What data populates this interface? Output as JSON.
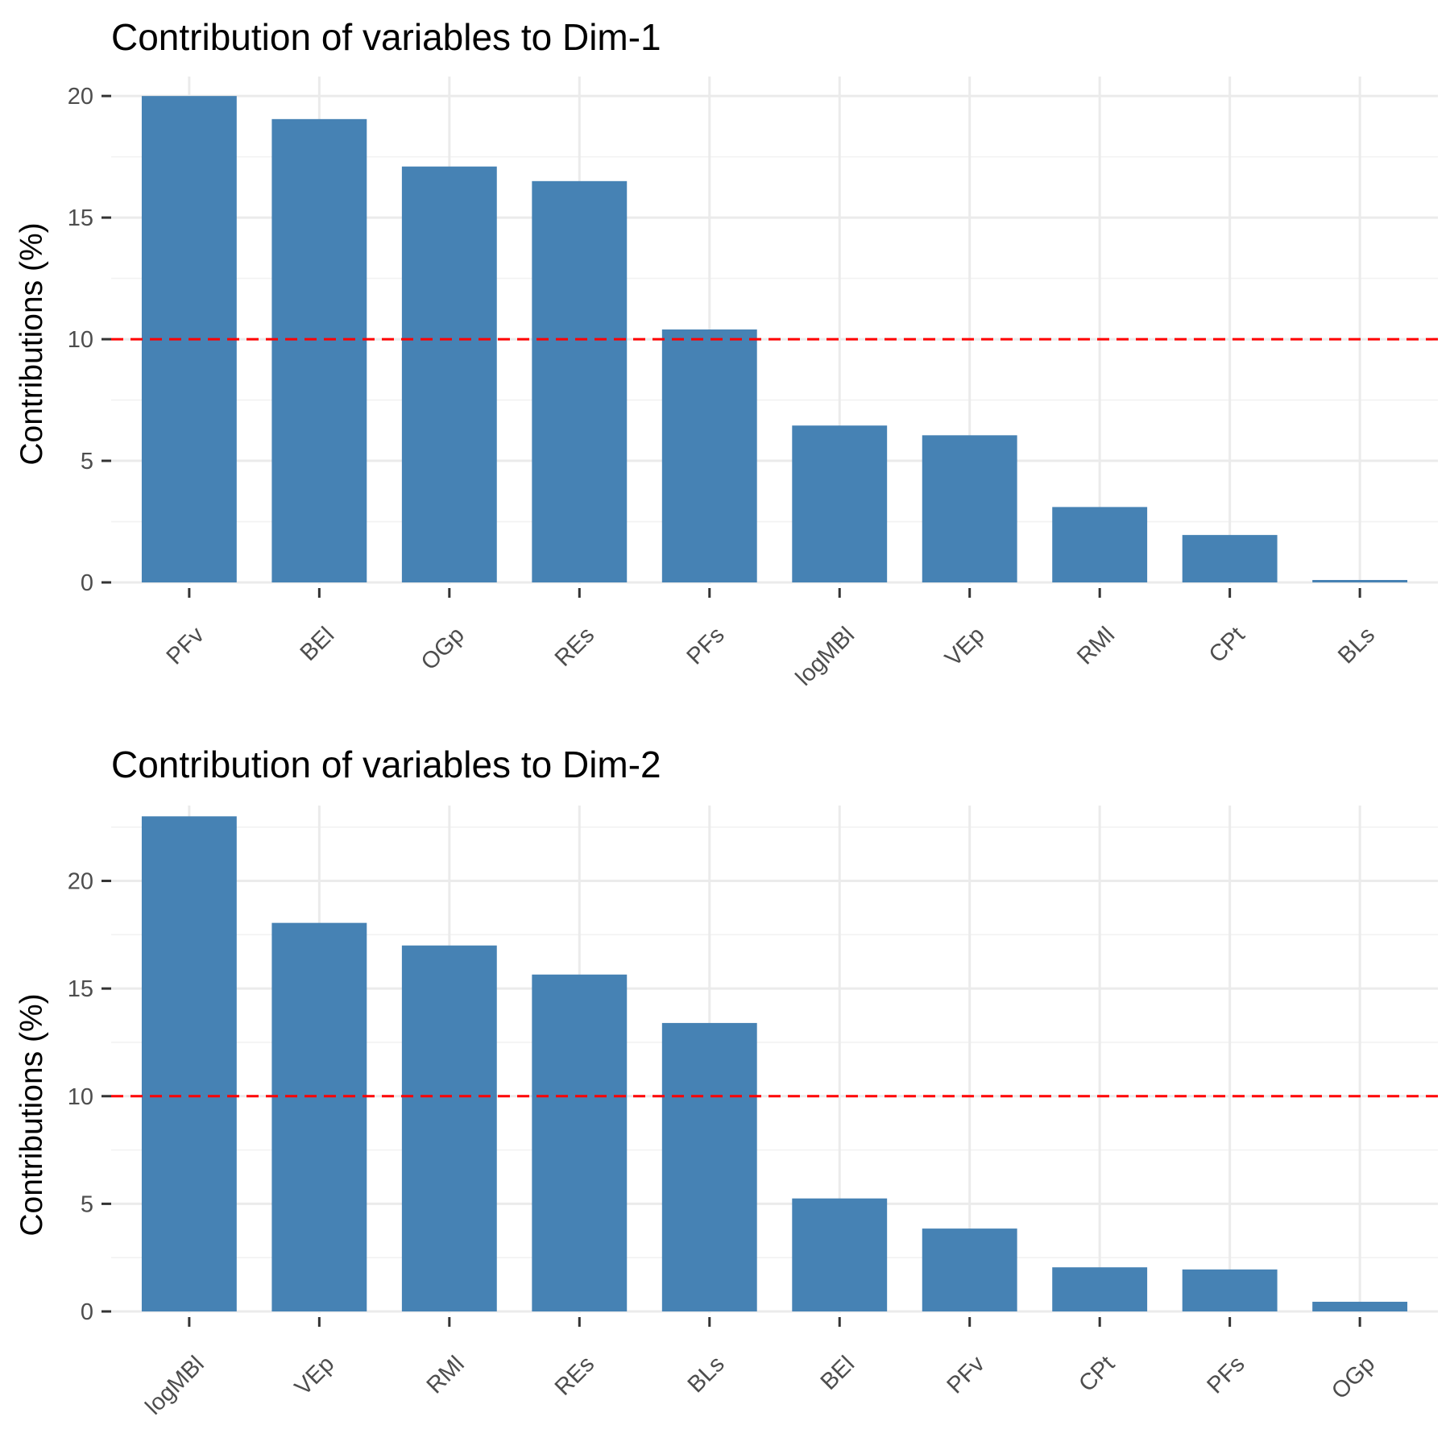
{
  "chart_data": [
    {
      "type": "bar",
      "title": "Contribution of variables to Dim-1",
      "xlabel": "",
      "ylabel": "Contributions (%)",
      "categories": [
        "PFv",
        "BEl",
        "OGp",
        "REs",
        "PFs",
        "logMBl",
        "VEp",
        "RMl",
        "CPt",
        "BLs"
      ],
      "values": [
        20.0,
        19.05,
        17.1,
        16.5,
        10.4,
        6.45,
        6.05,
        3.1,
        1.95,
        0.1
      ],
      "reference_line": 10,
      "ylim": [
        0,
        20.8
      ],
      "yticks": [
        0,
        5,
        10,
        15,
        20
      ],
      "bar_color": "#4682b4",
      "reference_color": "#ff0000",
      "grid": true
    },
    {
      "type": "bar",
      "title": "Contribution of variables to Dim-2",
      "xlabel": "",
      "ylabel": "Contributions (%)",
      "categories": [
        "logMBl",
        "VEp",
        "RMl",
        "REs",
        "BLs",
        "BEl",
        "PFv",
        "CPt",
        "PFs",
        "OGp"
      ],
      "values": [
        23.0,
        18.05,
        17.0,
        15.65,
        13.4,
        5.25,
        3.85,
        2.05,
        1.95,
        0.45
      ],
      "reference_line": 10,
      "ylim": [
        0,
        23.5
      ],
      "yticks": [
        0,
        5,
        10,
        15,
        20
      ],
      "bar_color": "#4682b4",
      "reference_color": "#ff0000",
      "grid": true
    }
  ]
}
